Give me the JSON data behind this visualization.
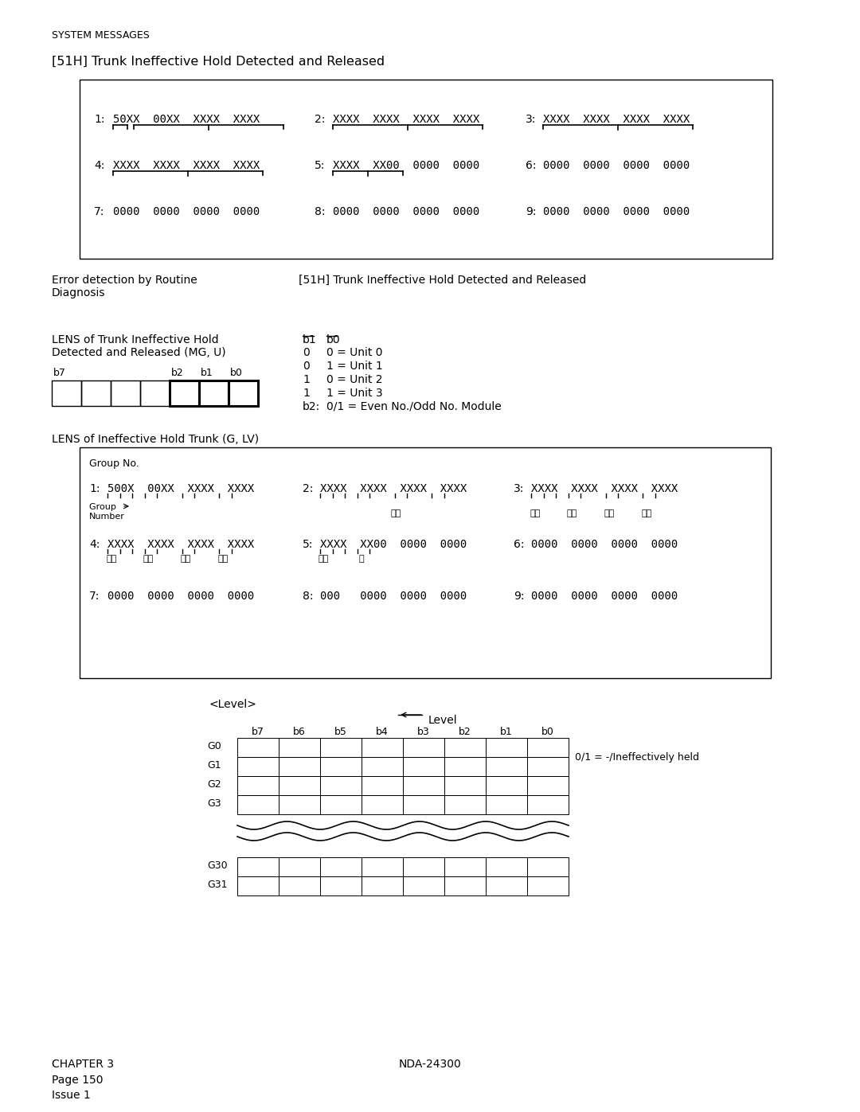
{
  "title_system": "SYSTEM MESSAGES",
  "title_51h": "[51H] Trunk Ineffective Hold Detected and Released",
  "error_detection": "Error detection by Routine\nDiagnosis",
  "51h_ref": "[51H] Trunk Ineffective Hold Detected and Released",
  "lens_title1": "LENS of Trunk Ineffective Hold\nDetected and Released (MG, U)",
  "lens_title2": "LENS of Ineffective Hold Trunk (G, LV)",
  "box2_header": "Group No.",
  "b1_b0_rows": [
    [
      "0",
      "0 = Unit 0"
    ],
    [
      "0",
      "1 = Unit 1"
    ],
    [
      "1",
      "0 = Unit 2"
    ],
    [
      "1",
      "1 = Unit 3"
    ]
  ],
  "b2_row": [
    "b2:",
    "0/1 = Even No./Odd No. Module"
  ],
  "grid_col_headers": [
    "b7",
    "b6",
    "b5",
    "b4",
    "b3",
    "b2",
    "b1",
    "b0"
  ],
  "grid_row_labels_top": [
    "G0",
    "G1",
    "G2",
    "G3"
  ],
  "grid_row_labels_bot": [
    "G30",
    "G31"
  ],
  "grid_annotation": "0/1 = -/Ineffectively held",
  "footer_left": "CHAPTER 3\nPage 150\nIssue 1",
  "footer_center": "NDA-24300"
}
